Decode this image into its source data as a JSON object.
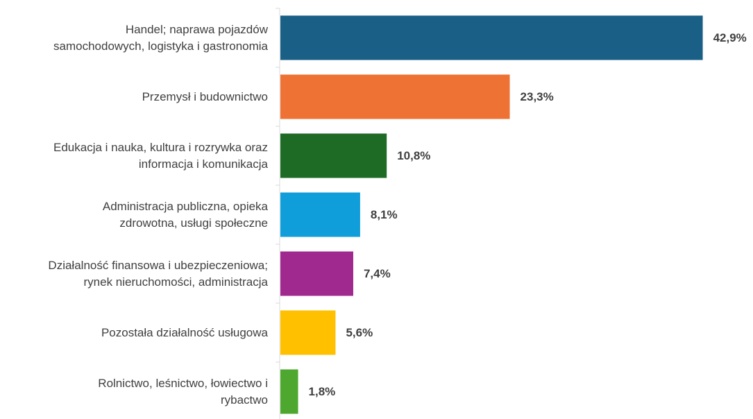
{
  "chart_data": {
    "type": "bar",
    "orientation": "horizontal",
    "categories": [
      [
        "Handel; naprawa pojazdów",
        "samochodowych, logistyka i gastronomia"
      ],
      [
        "Przemysł i budownictwo"
      ],
      [
        "Edukacja i nauka, kultura i rozrywka oraz",
        "informacja i komunikacja"
      ],
      [
        "Administracja publiczna, opieka",
        "zdrowotna, usługi społeczne"
      ],
      [
        "Działalność finansowa i ubezpieczeniowa;",
        "rynek nieruchomości, administracja"
      ],
      [
        "Pozostała działalność usługowa"
      ],
      [
        "Rolnictwo, leśnictwo, łowiectwo i",
        "rybactwo"
      ]
    ],
    "values": [
      42.9,
      23.3,
      10.8,
      8.1,
      7.4,
      5.6,
      1.8
    ],
    "value_labels": [
      "42,9%",
      "23,3%",
      "10,8%",
      "8,1%",
      "7,4%",
      "5,6%",
      "1,8%"
    ],
    "colors": [
      "#1a5f86",
      "#ed7233",
      "#1e6b26",
      "#0f9ed9",
      "#a0298f",
      "#ffc000",
      "#4ea72e"
    ],
    "xlim": [
      0,
      43
    ],
    "grid": false,
    "legend": "none",
    "title": "",
    "xlabel": "",
    "ylabel": ""
  }
}
